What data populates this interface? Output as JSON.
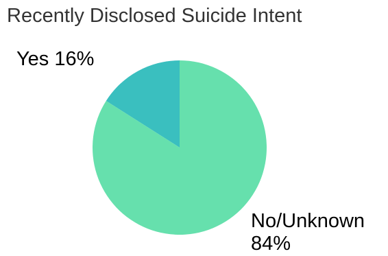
{
  "chart_data": {
    "type": "pie",
    "title": "Recently Disclosed Suicide Intent",
    "slices": [
      {
        "label": "Yes",
        "percent_text": "16%",
        "value": 16,
        "color": "#3abfbf"
      },
      {
        "label": "No/Unknown",
        "percent_text": "84%",
        "value": 84,
        "color": "#66e0ad"
      }
    ],
    "start_angle_deg": 0,
    "direction": "counterclockwise",
    "legend": "none"
  }
}
